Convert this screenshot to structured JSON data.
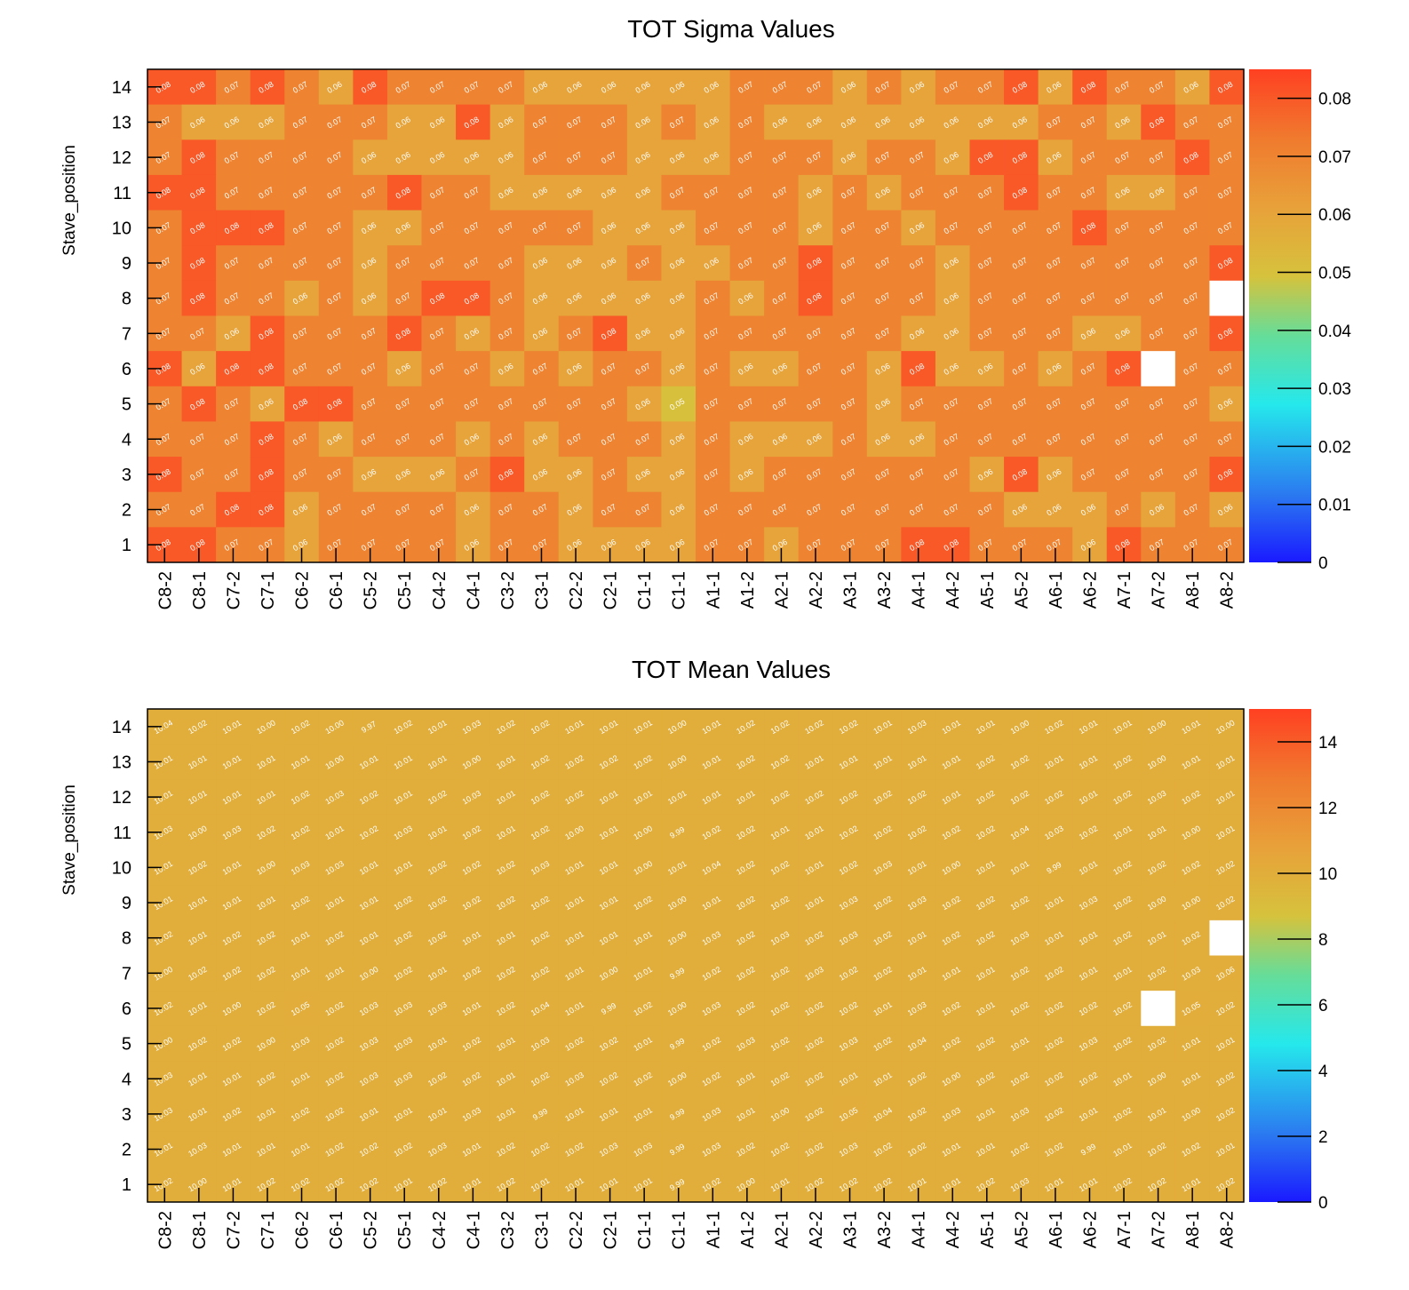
{
  "chart_data": [
    {
      "type": "heatmap",
      "title": "TOT Sigma Values",
      "xlabel": "",
      "ylabel": "Stave_position",
      "x_categories": [
        "C8-2",
        "C8-1",
        "C7-2",
        "C7-1",
        "C6-2",
        "C6-1",
        "C5-2",
        "C5-1",
        "C4-2",
        "C4-1",
        "C3-2",
        "C3-1",
        "C2-2",
        "C2-1",
        "C1-1",
        "C1-1",
        "A1-1",
        "A1-2",
        "A2-1",
        "A2-2",
        "A3-1",
        "A3-2",
        "A4-1",
        "A4-2",
        "A5-1",
        "A5-2",
        "A6-1",
        "A6-2",
        "A7-1",
        "A7-2",
        "A8-1",
        "A8-2"
      ],
      "y_categories": [
        "1",
        "2",
        "3",
        "4",
        "5",
        "6",
        "7",
        "8",
        "9",
        "10",
        "11",
        "12",
        "13",
        "14"
      ],
      "zlim": [
        0,
        0.085
      ],
      "z_ticks": [
        "0",
        "0.01",
        "0.02",
        "0.03",
        "0.04",
        "0.05",
        "0.06",
        "0.07",
        "0.08"
      ],
      "colorscale": [
        "#1a1aff",
        "#2b7bf0",
        "#25e8ec",
        "#66dd99",
        "#d6c23c",
        "#e8a13a",
        "#f07a2e",
        "#ff4022"
      ],
      "rows_top_to_bottom": [
        "0.08 0.08 0.07 0.08 0.07 0.06 0.08 0.07 0.07 0.07 0.07 0.06 0.06 0.06 0.06 0.06 0.06 0.07 0.07 0.07 0.06 0.07 0.06 0.07 0.07 0.08 0.06 0.08 0.07 0.07 0.06 0.08",
        "0.07 0.06 0.06 0.06 0.07 0.07 0.07 0.06 0.06 0.08 0.06 0.07 0.07 0.07 0.06 0.07 0.06 0.07 0.06 0.06 0.06 0.06 0.06 0.06 0.06 0.06 0.07 0.07 0.06 0.08 0.07 0.07",
        "0.07 0.08 0.07 0.07 0.07 0.07 0.06 0.06 0.06 0.06 0.06 0.07 0.07 0.07 0.06 0.06 0.06 0.07 0.07 0.07 0.06 0.07 0.07 0.06 0.08 0.08 0.06 0.07 0.07 0.07 0.08 0.07",
        "0.08 0.08 0.07 0.07 0.07 0.07 0.07 0.08 0.07 0.07 0.06 0.06 0.06 0.06 0.06 0.07 0.07 0.07 0.07 0.06 0.07 0.06 0.07 0.07 0.07 0.08 0.07 0.07 0.06 0.06 0.07 0.07",
        "0.07 0.08 0.08 0.08 0.07 0.07 0.06 0.06 0.07 0.07 0.07 0.07 0.07 0.06 0.06 0.06 0.07 0.07 0.07 0.06 0.07 0.07 0.06 0.07 0.07 0.07 0.07 0.08 0.07 0.07 0.07 0.07",
        "0.07 0.08 0.07 0.07 0.07 0.07 0.06 0.07 0.07 0.07 0.07 0.06 0.06 0.06 0.07 0.06 0.06 0.07 0.07 0.08 0.07 0.07 0.07 0.06 0.07 0.07 0.07 0.07 0.07 0.07 0.07 0.08",
        "0.07 0.08 0.07 0.07 0.06 0.07 0.06 0.07 0.08 0.08 0.07 0.06 0.06 0.06 0.06 0.06 0.07 0.06 0.07 0.08 0.07 0.07 0.07 0.06 0.07 0.07 0.07 0.07 0.07 0.07 0.07 -",
        "0.07 0.07 0.06 0.08 0.07 0.07 0.07 0.08 0.07 0.06 0.07 0.06 0.07 0.08 0.06 0.06 0.07 0.07 0.07 0.07 0.07 0.07 0.06 0.06 0.07 0.07 0.07 0.06 0.06 0.07 0.07 0.08",
        "0.08 0.06 0.08 0.08 0.07 0.07 0.07 0.06 0.07 0.07 0.06 0.07 0.06 0.07 0.07 0.06 0.07 0.06 0.06 0.07 0.07 0.06 0.08 0.06 0.06 0.07 0.06 0.07 0.08 - 0.07 0.07",
        "0.07 0.08 0.07 0.06 0.08 0.08 0.07 0.07 0.07 0.07 0.07 0.07 0.07 0.07 0.06 0.05 0.07 0.07 0.07 0.07 0.07 0.06 0.07 0.07 0.07 0.07 0.07 0.07 0.07 0.07 0.07 0.06",
        "0.07 0.07 0.07 0.08 0.07 0.06 0.07 0.07 0.07 0.06 0.07 0.06 0.07 0.07 0.07 0.06 0.07 0.06 0.06 0.06 0.07 0.06 0.06 0.07 0.07 0.07 0.07 0.07 0.07 0.07 0.07 0.07",
        "0.08 0.07 0.07 0.08 0.07 0.07 0.06 0.06 0.06 0.07 0.08 0.06 0.06 0.07 0.06 0.06 0.07 0.06 0.07 0.07 0.07 0.07 0.07 0.07 0.06 0.08 0.06 0.07 0.07 0.07 0.07 0.08",
        "0.07 0.07 0.08 0.08 0.06 0.07 0.07 0.07 0.07 0.06 0.07 0.07 0.06 0.07 0.07 0.06 0.07 0.07 0.07 0.07 0.07 0.07 0.07 0.07 0.07 0.06 0.06 0.06 0.07 0.06 0.07 0.06",
        "0.08 0.08 0.07 0.07 0.06 0.07 0.07 0.07 0.07 0.06 0.07 0.07 0.06 0.06 0.06 0.06 0.07 0.07 0.06 0.07 0.07 0.07 0.08 0.08 0.07 0.07 0.07 0.06 0.08 0.07 0.07 0.07"
      ]
    },
    {
      "type": "heatmap",
      "title": "TOT Mean Values",
      "xlabel": "",
      "ylabel": "Stave_position",
      "x_categories": [
        "C8-2",
        "C8-1",
        "C7-2",
        "C7-1",
        "C6-2",
        "C6-1",
        "C5-2",
        "C5-1",
        "C4-2",
        "C4-1",
        "C3-2",
        "C3-1",
        "C2-2",
        "C2-1",
        "C1-1",
        "C1-1",
        "A1-1",
        "A1-2",
        "A2-1",
        "A2-2",
        "A3-1",
        "A3-2",
        "A4-1",
        "A4-2",
        "A5-1",
        "A5-2",
        "A6-1",
        "A6-2",
        "A7-1",
        "A7-2",
        "A8-1",
        "A8-2"
      ],
      "y_categories": [
        "1",
        "2",
        "3",
        "4",
        "5",
        "6",
        "7",
        "8",
        "9",
        "10",
        "11",
        "12",
        "13",
        "14"
      ],
      "zlim": [
        0,
        15
      ],
      "z_ticks": [
        "0",
        "2",
        "4",
        "6",
        "8",
        "10",
        "12",
        "14"
      ],
      "colorscale": [
        "#1a1aff",
        "#2b7bf0",
        "#25e8ec",
        "#66dd99",
        "#d6c23c",
        "#e8a13a",
        "#f07a2e",
        "#ff4022"
      ],
      "rows_top_to_bottom": [
        "10.04 10.02 10.01 10.00 10.02 10.00 9.97 10.02 10.01 10.03 10.02 10.02 10.01 10.01 10.01 10.00 10.01 10.02 10.02 10.02 10.02 10.01 10.03 10.01 10.01 10.00 10.02 10.01 10.01 10.00 10.01 10.00",
        "10.01 10.01 10.01 10.01 10.01 10.00 10.01 10.01 10.01 10.00 10.01 10.02 10.02 10.02 10.02 10.00 10.01 10.02 10.02 10.01 10.01 10.01 10.01 10.01 10.02 10.02 10.01 10.01 10.02 10.00 10.01 10.01",
        "10.01 10.01 10.01 10.01 10.02 10.03 10.02 10.01 10.02 10.03 10.01 10.02 10.02 10.01 10.01 10.01 10.01 10.01 10.02 10.02 10.02 10.02 10.02 10.01 10.02 10.02 10.02 10.01 10.02 10.03 10.02 10.01",
        "10.03 10.00 10.03 10.02 10.02 10.01 10.02 10.03 10.01 10.02 10.01 10.02 10.00 10.01 10.00 9.99 10.02 10.02 10.01 10.01 10.02 10.02 10.02 10.02 10.02 10.04 10.03 10.02 10.01 10.01 10.00 10.01",
        "10.01 10.02 10.01 10.00 10.03 10.03 10.01 10.01 10.02 10.02 10.02 10.03 10.01 10.01 10.00 10.01 10.04 10.02 10.02 10.01 10.02 10.03 10.01 10.00 10.01 10.01 9.99 10.01 10.02 10.02 10.02 10.02",
        "10.01 10.01 10.01 10.01 10.02 10.01 10.01 10.02 10.02 10.02 10.02 10.02 10.01 10.01 10.02 10.00 10.01 10.02 10.02 10.01 10.03 10.02 10.03 10.02 10.02 10.02 10.01 10.03 10.02 10.00 10.00 10.02",
        "10.02 10.01 10.02 10.02 10.01 10.02 10.01 10.02 10.02 10.01 10.01 10.02 10.01 10.01 10.01 10.00 10.03 10.02 10.03 10.02 10.03 10.02 10.01 10.02 10.02 10.03 10.01 10.01 10.02 10.01 10.02 -",
        "10.00 10.02 10.02 10.02 10.01 10.01 10.00 10.02 10.01 10.02 10.02 10.02 10.01 10.00 10.01 9.99 10.02 10.02 10.02 10.03 10.02 10.02 10.01 10.01 10.01 10.02 10.02 10.01 10.01 10.02 10.03 10.06",
        "10.02 10.01 10.00 10.02 10.05 10.02 10.03 10.03 10.03 10.01 10.02 10.04 10.01 9.99 10.02 10.00 10.03 10.02 10.02 10.02 10.02 10.01 10.03 10.02 10.01 10.02 10.02 10.02 10.02 - 10.05 10.02",
        "10.00 10.02 10.02 10.00 10.03 10.02 10.03 10.03 10.01 10.02 10.01 10.03 10.02 10.02 10.01 9.99 10.02 10.03 10.02 10.02 10.03 10.02 10.04 10.02 10.02 10.01 10.02 10.03 10.02 10.02 10.01 10.01",
        "10.03 10.01 10.01 10.02 10.01 10.02 10.03 10.03 10.02 10.02 10.01 10.02 10.03 10.02 10.02 10.00 10.02 10.01 10.02 10.02 10.01 10.01 10.02 10.00 10.02 10.02 10.02 10.02 10.01 10.00 10.01 10.02",
        "10.03 10.01 10.02 10.01 10.02 10.02 10.01 10.01 10.01 10.03 10.01 9.99 10.01 10.01 10.01 9.99 10.03 10.01 10.00 10.02 10.05 10.04 10.02 10.03 10.01 10.03 10.02 10.01 10.02 10.01 10.00 10.02",
        "10.01 10.03 10.01 10.01 10.01 10.02 10.02 10.02 10.03 10.01 10.02 10.02 10.02 10.03 10.03 9.99 10.03 10.02 10.02 10.02 10.03 10.02 10.02 10.01 10.01 10.02 10.02 9.99 10.01 10.02 10.02 10.01",
        "10.02 10.00 10.01 10.02 10.02 10.02 10.02 10.01 10.02 10.01 10.02 10.01 10.01 10.01 10.01 9.99 10.02 10.00 10.01 10.02 10.02 10.02 10.01 10.01 10.02 10.03 10.01 10.01 10.02 10.02 10.01 10.02"
      ]
    }
  ]
}
